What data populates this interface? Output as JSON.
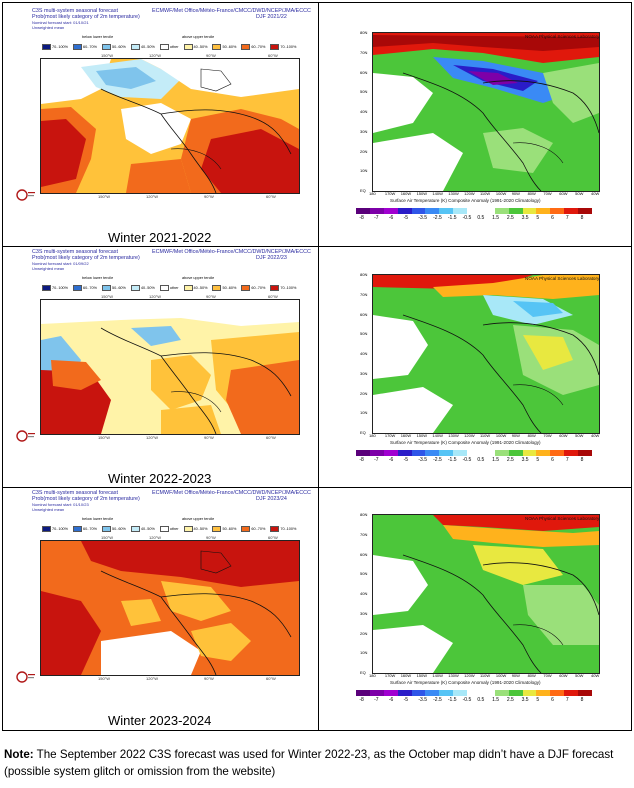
{
  "c3s_header": {
    "title_line": "C3S multi-system seasonal forecast",
    "agencies": "ECMWF/Met Office/Météo-France/CMCC/DWD/NCEP/JMA/ECCC",
    "subtitle": "Prob(most likely category of 2m temperature)",
    "mean_label": "Unweighted mean",
    "below_label": "below lower tercile",
    "above_label": "above upper tercile",
    "legend": [
      "70..100%",
      "60..70%",
      "50..60%",
      "40..50%",
      "other",
      "40..50%",
      "50..60%",
      "60..70%",
      "70..100%"
    ],
    "legend_colors": [
      "#0c1a80",
      "#2f6fd0",
      "#7fc4ec",
      "#c4ecf8",
      "#ffffff",
      "#fff3a8",
      "#ffc040",
      "#f26a1c",
      "#c8140e"
    ],
    "lon_labels_top": [
      "150°W",
      "120°W",
      "90°W",
      "60°W"
    ],
    "lon_labels_bottom": [
      "150°W",
      "120°W",
      "90°W",
      "60°W"
    ]
  },
  "noaa_header": {
    "lab": "NOAA Physical Sciences Laboratory",
    "cbar_title": "Surface Air Temperature (K) Composite Anomaly (1991-2020 Climatology)",
    "cbar_ticks": [
      "-8",
      "-7",
      "-6",
      "-5",
      "-3.5",
      "-2.5",
      "-1.5",
      "-0.5",
      "0.5",
      "1.5",
      "2.5",
      "3.5",
      "5",
      "6",
      "7",
      "8"
    ],
    "cbar_colors": [
      "#5a007a",
      "#7d00a8",
      "#a000d0",
      "#2a1cc8",
      "#2f55e8",
      "#3a8af5",
      "#56c4f5",
      "#a8e8f8",
      "#ffffff",
      "#ffffff",
      "#9ae07a",
      "#4cc63a",
      "#e8e840",
      "#ffb21c",
      "#ff6a14",
      "#e0180c",
      "#a80808"
    ],
    "lat_labels": [
      "80N",
      "70N",
      "60N",
      "50N",
      "40N",
      "30N",
      "20N",
      "10N",
      "EQ"
    ],
    "lon_labels": [
      "180",
      "170W",
      "160W",
      "150W",
      "140W",
      "130W",
      "120W",
      "110W",
      "100W",
      "90W",
      "80W",
      "70W",
      "60W",
      "50W",
      "40W"
    ]
  },
  "rows": [
    {
      "caption": "Winter 2021-2022",
      "season": "DJF 2021/22",
      "start": "Nominal forecast start: 01/10/21"
    },
    {
      "caption": "Winter 2022-2023",
      "season": "DJF 2022/23",
      "start": "Nominal forecast start: 01/09/22"
    },
    {
      "caption": "Winter 2023-2024",
      "season": "DJF 2023/24",
      "start": "Nominal forecast start: 01/10/23"
    }
  ],
  "note": {
    "label": "Note:",
    "text": " The September 2022 C3S forecast was used for Winter 2022-23, as the October map didn’t have a DJF forecast (possible system glitch or omission from the website)"
  }
}
